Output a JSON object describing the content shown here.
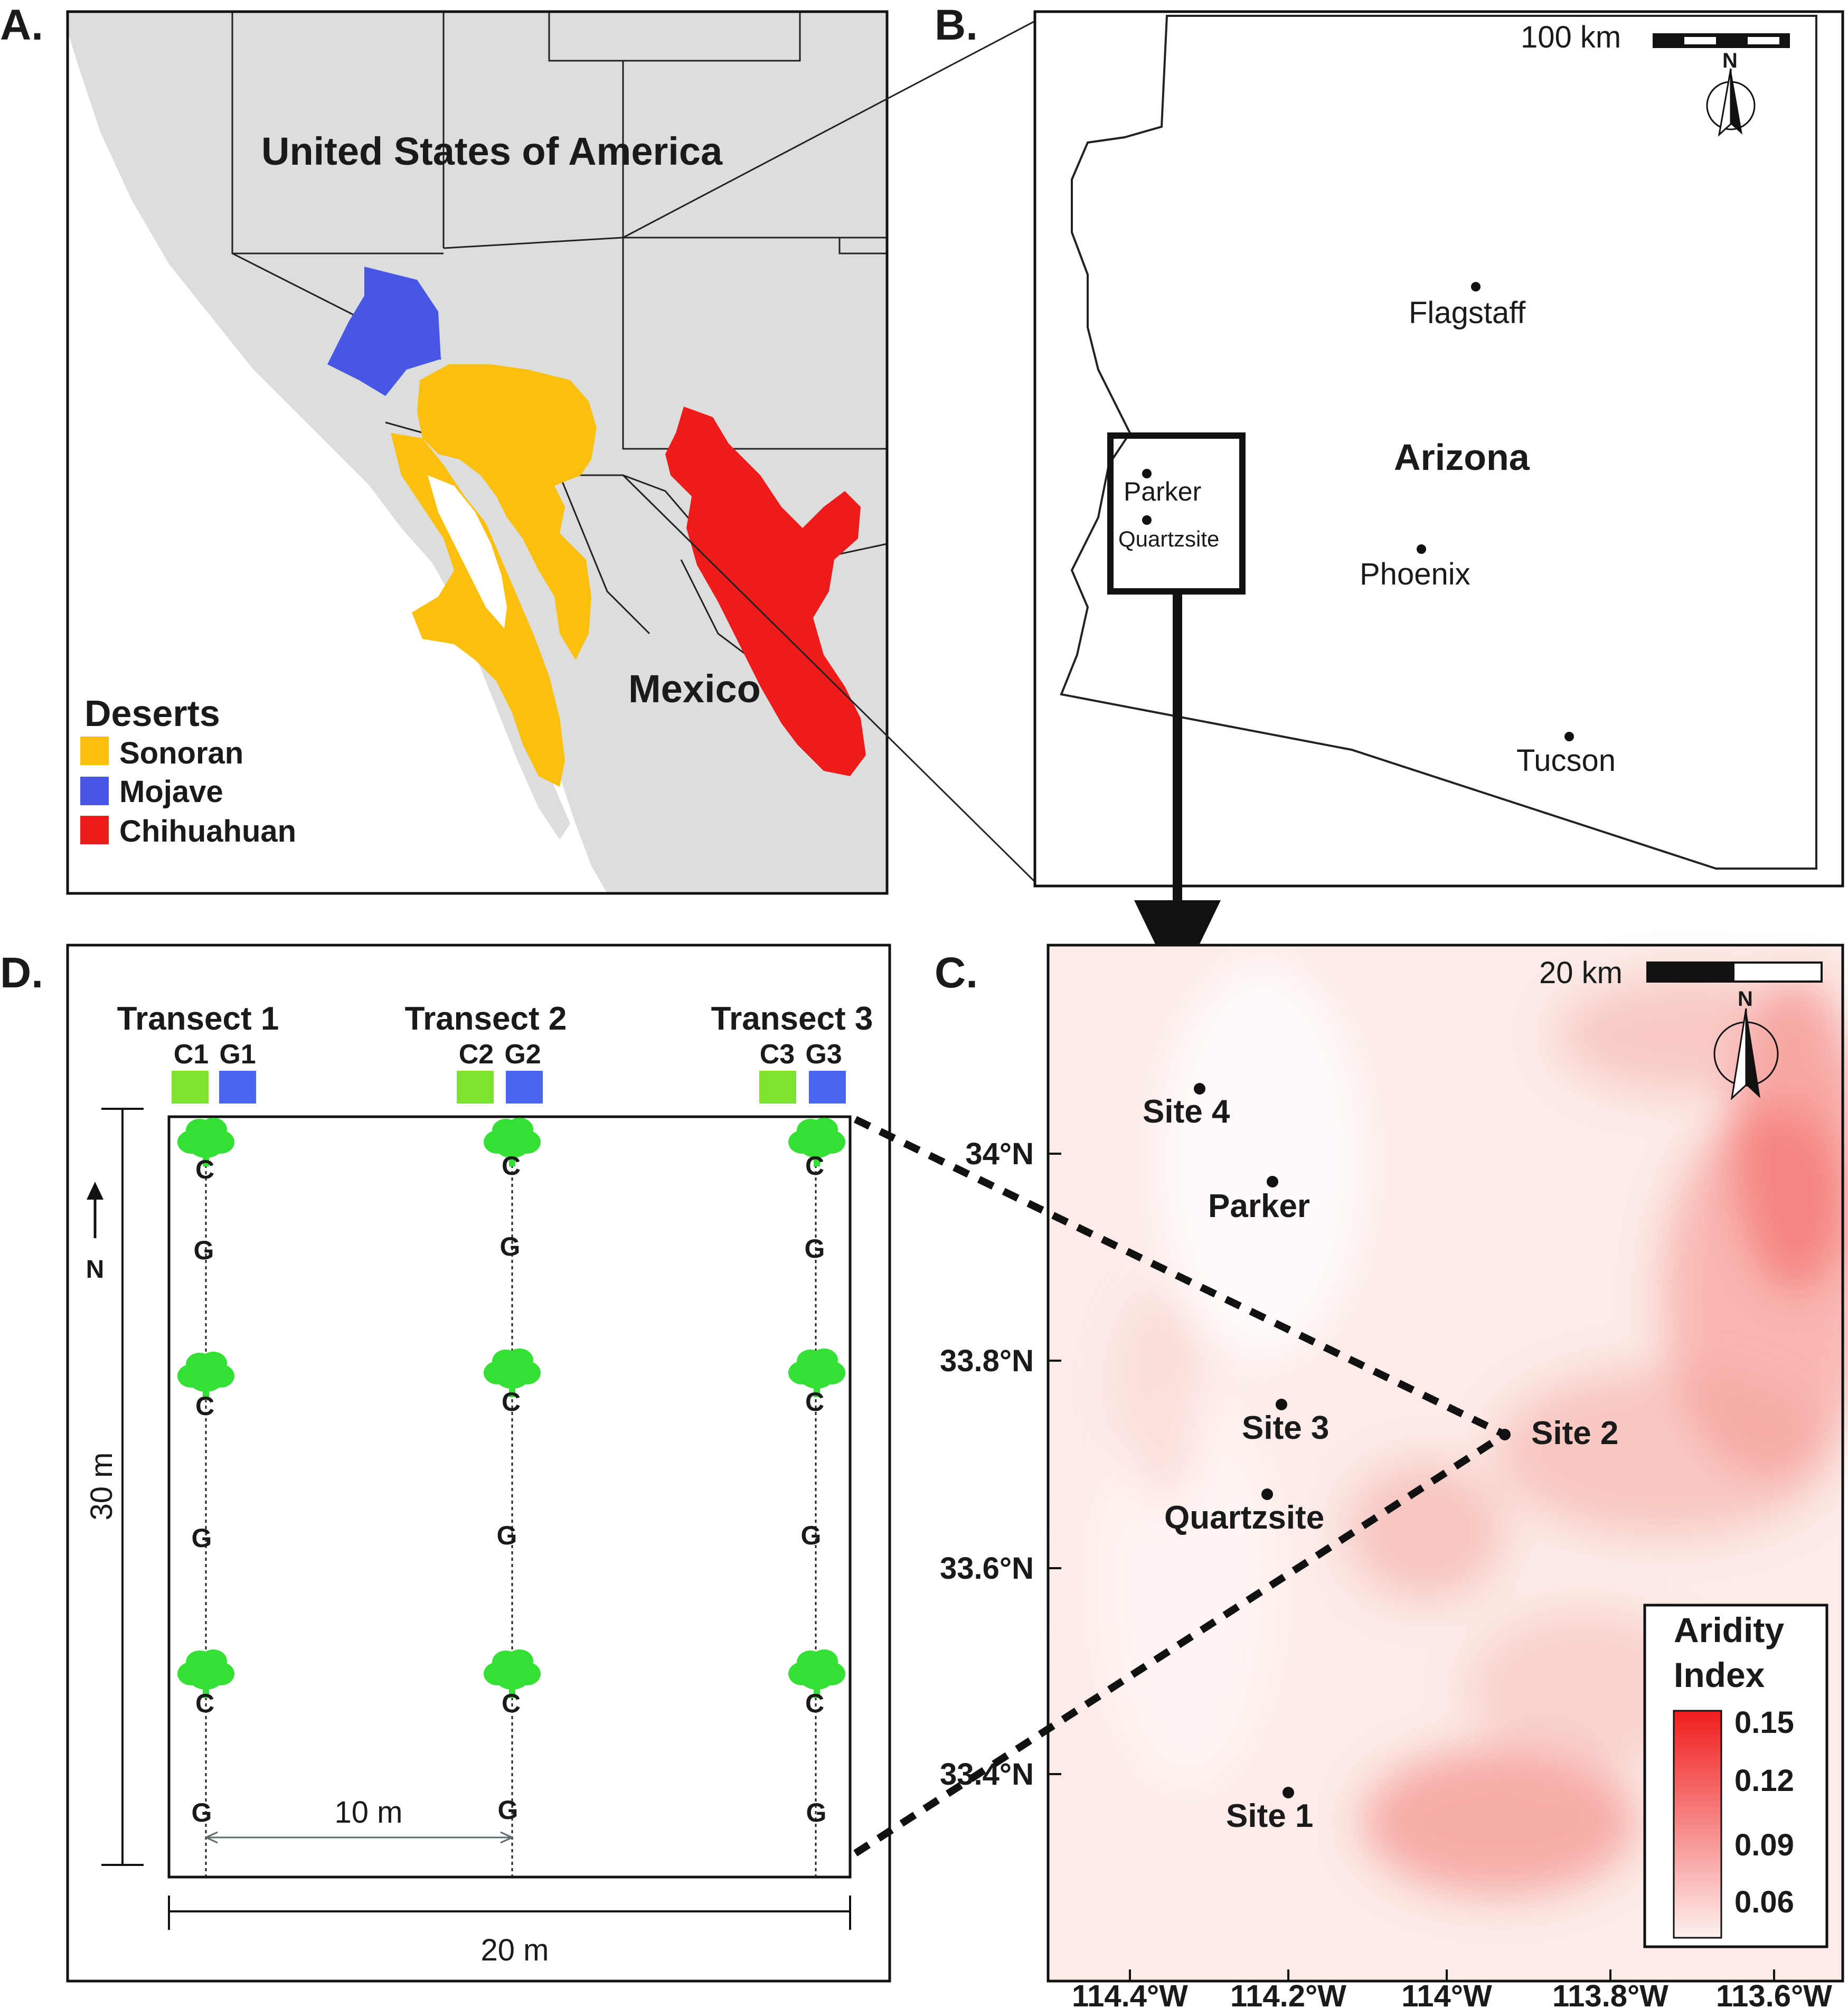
{
  "panelA": {
    "label": "A.",
    "country_us": "United States of America",
    "country_mx": "Mexico",
    "legend_title": "Deserts",
    "legend": [
      {
        "name": "Sonoran",
        "color": "#fbbf0e"
      },
      {
        "name": "Mojave",
        "color": "#4757e4"
      },
      {
        "name": "Chihuahuan",
        "color": "#ee1b1b"
      }
    ],
    "land_color": "#dcdede"
  },
  "panelB": {
    "label": "B.",
    "scale_label": "100 km",
    "north": "N",
    "state_label": "Arizona",
    "cities": [
      "Flagstaff",
      "Phoenix",
      "Tucson",
      "Parker",
      "Quartzsite"
    ]
  },
  "panelC": {
    "label": "C.",
    "scale_label": "20 km",
    "north": "N",
    "sites": [
      "Site 4",
      "Parker",
      "Site 3",
      "Quartzsite",
      "Site 2",
      "Site 1"
    ],
    "lat_ticks": [
      "34°N",
      "33.8°N",
      "33.6°N",
      "33.4°N"
    ],
    "lon_ticks": [
      "114.4°W",
      "114.2°W",
      "114°W",
      "113.8°W",
      "113.6°W"
    ],
    "legend_title_1": "Aridity",
    "legend_title_2": "Index",
    "legend_values": [
      "0.15",
      "0.12",
      "0.09",
      "0.06"
    ],
    "ramp_low_color": "#fdf1ef",
    "ramp_high_color": "#f01d1d"
  },
  "panelD": {
    "label": "D.",
    "transects": [
      {
        "title": "Transect 1",
        "c": "C1",
        "g": "G1"
      },
      {
        "title": "Transect 2",
        "c": "C2",
        "g": "G2"
      },
      {
        "title": "Transect 3",
        "c": "C3",
        "g": "G3"
      }
    ],
    "c_color": "#7ee22e",
    "g_color": "#4a66f0",
    "tree_color": "#35e035",
    "c_mark": "C",
    "g_mark": "G",
    "north": "N",
    "height_label": "30 m",
    "spacing_label": "10 m",
    "width_label": "20 m"
  }
}
